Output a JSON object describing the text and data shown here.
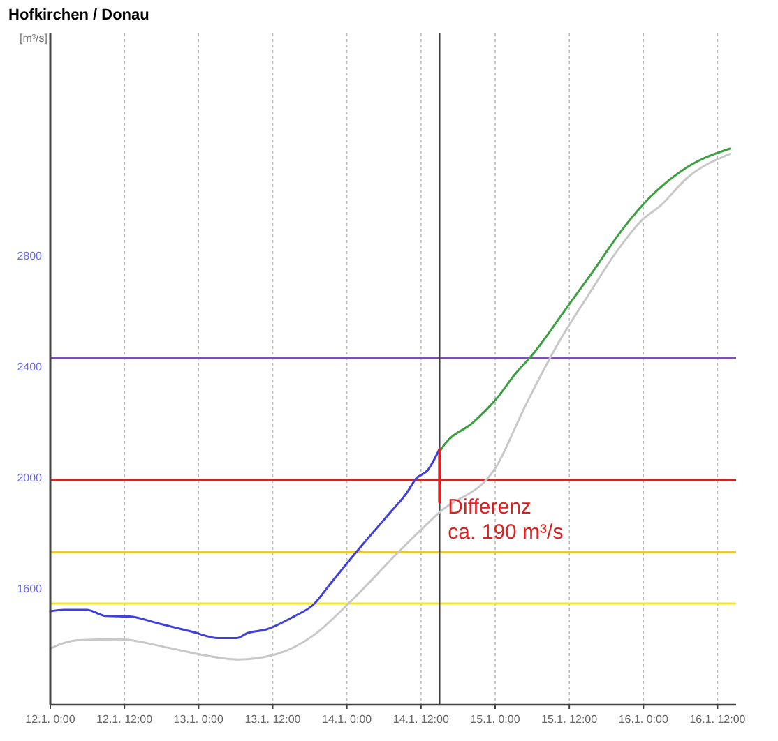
{
  "chart_data": {
    "type": "line",
    "title": "Hofkirchen / Donau",
    "ylabel": "[m³/s]",
    "xlim": [
      "--01-12T00:00",
      "--01-16T15:00"
    ],
    "ylim": [
      1180,
      3600
    ],
    "xticks": [
      {
        "value": "--01-12T00:00",
        "label": "12.1. 0:00"
      },
      {
        "value": "--01-12T12:00",
        "label": "12.1. 12:00"
      },
      {
        "value": "--01-13T00:00",
        "label": "13.1. 0:00"
      },
      {
        "value": "--01-13T12:00",
        "label": "13.1. 12:00"
      },
      {
        "value": "--01-14T00:00",
        "label": "14.1. 0:00"
      },
      {
        "value": "--01-14T12:00",
        "label": "14.1. 12:00"
      },
      {
        "value": "--01-15T00:00",
        "label": "15.1. 0:00"
      },
      {
        "value": "--01-15T12:00",
        "label": "15.1. 12:00"
      },
      {
        "value": "--01-16T00:00",
        "label": "16.1. 0:00"
      },
      {
        "value": "--01-16T12:00",
        "label": "16.1. 12:00"
      }
    ],
    "yticks": [
      1600,
      2000,
      2400,
      2800
    ],
    "grid": "x",
    "line_style": "solid",
    "marker": "none",
    "series": [
      {
        "color": "#c8c8c8",
        "x": [
          "--01-12T00:00",
          "--01-12T04:30",
          "--01-12T11:12",
          "--01-12T19:00",
          "--01-13T00:18",
          "--01-13T06:24",
          "--01-13T12:24",
          "--01-13T18:36",
          "--01-14T00:36",
          "--01-14T08:12",
          "--01-14T15:00",
          "--01-15T00:12",
          "--01-15T04:42",
          "--01-15T10:00",
          "--01-15T15:24",
          "--01-15T20:00",
          "--01-15T23:48",
          "--01-16T02:48",
          "--01-16T07:00",
          "--01-16T14:00"
        ],
        "values": [
          1383,
          1413,
          1416,
          1386,
          1361,
          1343,
          1361,
          1430,
          1552,
          1727,
          1874,
          2039,
          2249,
          2475,
          2668,
          2824,
          2928,
          2980,
          3078,
          3166
        ]
      },
      {
        "color": "#4040e0",
        "x": [
          "--01-12T00:00",
          "--01-12T02:12",
          "--01-12T05:54",
          "--01-12T09:00",
          "--01-12T12:48",
          "--01-12T17:30",
          "--01-12T22:48",
          "--01-13T03:12",
          "--01-13T06:06",
          "--01-13T08:00",
          "--01-13T10:54",
          "--01-13T15:24",
          "--01-13T18:36",
          "--01-13T21:30",
          "--01-14T02:00",
          "--01-14T06:42",
          "--01-14T09:42",
          "--01-14T11:12",
          "--01-14T13:06",
          "--01-14T15:00"
        ],
        "values": [
          1517,
          1522,
          1522,
          1500,
          1498,
          1473,
          1444,
          1420,
          1420,
          1439,
          1451,
          1498,
          1541,
          1621,
          1743,
          1865,
          1944,
          1995,
          2026,
          2102
        ]
      },
      {
        "color": "#3ca040",
        "x": [
          "--01-14T15:00",
          "--01-14T15:48",
          "--01-14T20:24",
          "--01-15T00:12",
          "--01-15T03:12",
          "--01-15T06:18",
          "--01-15T11:42",
          "--01-15T16:12",
          "--01-15T20:00",
          "--01-15T23:48",
          "--01-16T07:00",
          "--01-16T14:00"
        ],
        "values": [
          2092,
          2118,
          2197,
          2283,
          2371,
          2449,
          2615,
          2754,
          2876,
          2980,
          3117,
          3185
        ]
      },
      {
        "color": "#e02020",
        "x": [
          "--01-14T15:00",
          "--01-14T15:00"
        ],
        "values": [
          2100,
          1910
        ]
      }
    ],
    "ref_lines": [
      {
        "axis": "y",
        "value": 2430,
        "color": "#7a50b0"
      },
      {
        "axis": "y",
        "value": 1990,
        "color": "#e02020"
      },
      {
        "axis": "y",
        "value": 1730,
        "color": "#f0c820"
      },
      {
        "axis": "y",
        "value": 1545,
        "color": "#f2e830"
      },
      {
        "axis": "x",
        "value": "--01-14T15:00",
        "color": "#444444"
      }
    ],
    "annotations": [
      {
        "text": "Differenz\nca. 190 m³/s",
        "x": "--01-14T15:00",
        "y": 1910
      }
    ]
  }
}
